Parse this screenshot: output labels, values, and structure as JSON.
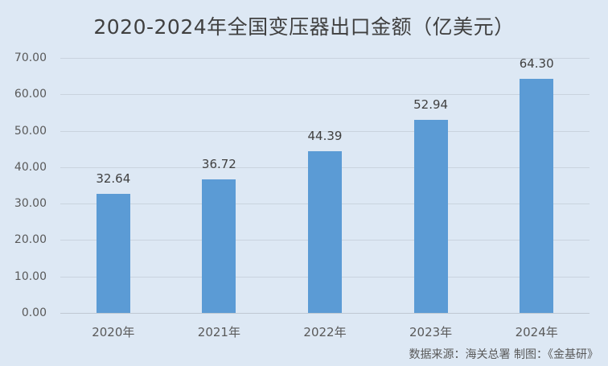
{
  "chart_data": {
    "type": "bar",
    "title": "2020-2024年全国变压器出口金额（亿美元）",
    "categories": [
      "2020年",
      "2021年",
      "2022年",
      "2023年",
      "2024年"
    ],
    "values": [
      32.64,
      36.72,
      44.39,
      52.94,
      64.3
    ],
    "value_labels": [
      "32.64",
      "36.72",
      "44.39",
      "52.94",
      "64.30"
    ],
    "xlabel": "",
    "ylabel": "",
    "ylim": [
      0,
      70
    ],
    "yticks": [
      "0.00",
      "10.00",
      "20.00",
      "30.00",
      "40.00",
      "50.00",
      "60.00",
      "70.00"
    ],
    "grid": true,
    "legend": "none",
    "bar_color": "#5b9bd5",
    "background_color": "#dde8f4",
    "source_note": "数据来源：海关总署   制图：《金基研》"
  }
}
